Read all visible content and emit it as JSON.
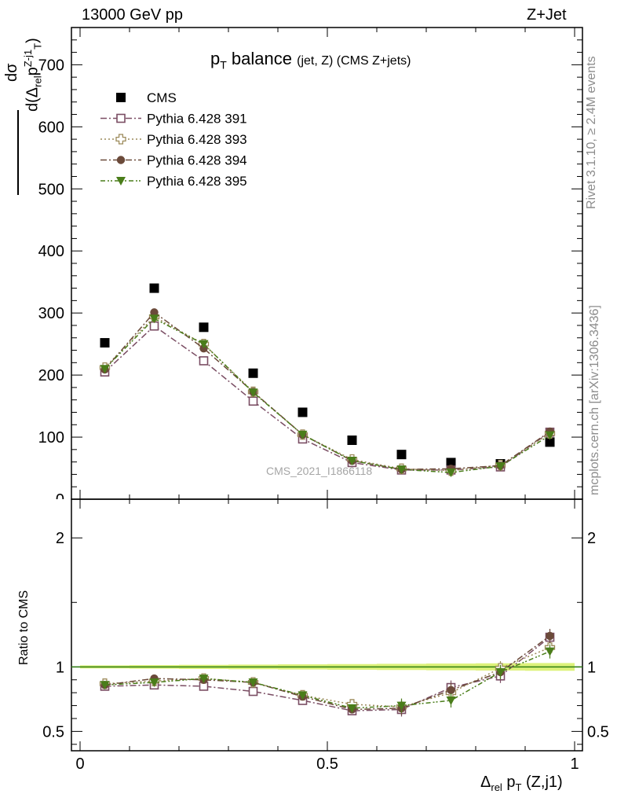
{
  "header": {
    "left": "13000 GeV pp",
    "right": "Z+Jet"
  },
  "side_labels": {
    "rivet": "Rivet 3.1.10, ≥ 2.4M events",
    "mcplots": "mcplots.cern.ch [arXiv:1306.3436]"
  },
  "plot_title": {
    "main": "p",
    "main_sub": "T",
    "main_rest": " balance",
    "small": "(jet, Z) (CMS Z+jets)"
  },
  "watermark": "CMS_2021_I1866118",
  "y_label": {
    "num": "dσ",
    "den_pre": "d(Δ",
    "den_sub": "rel",
    "den_mid": "p",
    "den_sup": "Z-j1",
    "den_sub2": "T",
    "den_post": ")"
  },
  "ratio_label": "Ratio to CMS",
  "x_label": {
    "pre": "Δ",
    "sub": "rel",
    "mid": " p",
    "sub2": "T",
    "post": " (Z,j1)"
  },
  "colors": {
    "data": "#000000",
    "s391": "#7a4d63",
    "s393": "#9c8a5a",
    "s394": "#6b4a3a",
    "s395": "#4a7d1a",
    "band": "#ddf27a",
    "refline": "#2e7d12"
  },
  "chart_data": [
    {
      "type": "scatter",
      "panel": "main",
      "xlim": [
        0,
        1
      ],
      "ylim": [
        0,
        760
      ],
      "yticks": [
        100,
        200,
        300,
        400,
        500,
        600,
        700
      ],
      "xticks": [
        0,
        0.5,
        1
      ],
      "xtick_labels": [
        "0",
        "0.5",
        "1"
      ],
      "x": [
        0.05,
        0.15,
        0.25,
        0.35,
        0.45,
        0.55,
        0.65,
        0.75,
        0.85,
        0.95
      ],
      "series": [
        {
          "name": "CMS",
          "marker": "square-filled",
          "values": [
            252,
            340,
            277,
            203,
            140,
            95,
            72,
            59,
            57,
            92
          ]
        },
        {
          "name": "Pythia 6.428 391",
          "marker": "square-open",
          "line": "dash-dot",
          "values": [
            205,
            279,
            223,
            158,
            97,
            59,
            47,
            47,
            52,
            108
          ]
        },
        {
          "name": "Pythia 6.428 393",
          "marker": "cross-open",
          "line": "dot",
          "values": [
            212,
            294,
            250,
            173,
            104,
            64,
            49,
            46,
            55,
            106
          ]
        },
        {
          "name": "Pythia 6.428 394",
          "marker": "circle-filled",
          "line": "dash-dot",
          "values": [
            209,
            301,
            243,
            173,
            104,
            62,
            48,
            49,
            54,
            109
          ]
        },
        {
          "name": "Pythia 6.428 395",
          "marker": "triangle-down-filled",
          "line": "dash-dot-dot",
          "values": [
            210,
            291,
            250,
            172,
            104,
            62,
            48,
            43,
            53,
            103
          ]
        }
      ]
    },
    {
      "type": "scatter",
      "panel": "ratio",
      "ylabel": "Ratio to CMS",
      "xlim": [
        0,
        1
      ],
      "ylim": [
        0.35,
        2.3
      ],
      "yticks": [
        0.5,
        1,
        2
      ],
      "ytick_labels": [
        "0.5",
        "1",
        "2"
      ],
      "x": [
        0.05,
        0.15,
        0.25,
        0.35,
        0.45,
        0.55,
        0.65,
        0.75,
        0.85,
        0.95
      ],
      "series": [
        {
          "name": "Pythia 6.428 391",
          "values": [
            0.85,
            0.86,
            0.85,
            0.81,
            0.74,
            0.66,
            0.67,
            0.84,
            0.93,
            1.23
          ]
        },
        {
          "name": "Pythia 6.428 393",
          "values": [
            0.87,
            0.89,
            0.91,
            0.88,
            0.78,
            0.71,
            0.69,
            0.8,
            0.99,
            1.15
          ]
        },
        {
          "name": "Pythia 6.428 394",
          "values": [
            0.86,
            0.91,
            0.9,
            0.88,
            0.77,
            0.67,
            0.68,
            0.82,
            0.96,
            1.24
          ]
        },
        {
          "name": "Pythia 6.428 395",
          "values": [
            0.86,
            0.88,
            0.91,
            0.88,
            0.78,
            0.68,
            0.7,
            0.74,
            0.96,
            1.12
          ]
        }
      ]
    }
  ]
}
